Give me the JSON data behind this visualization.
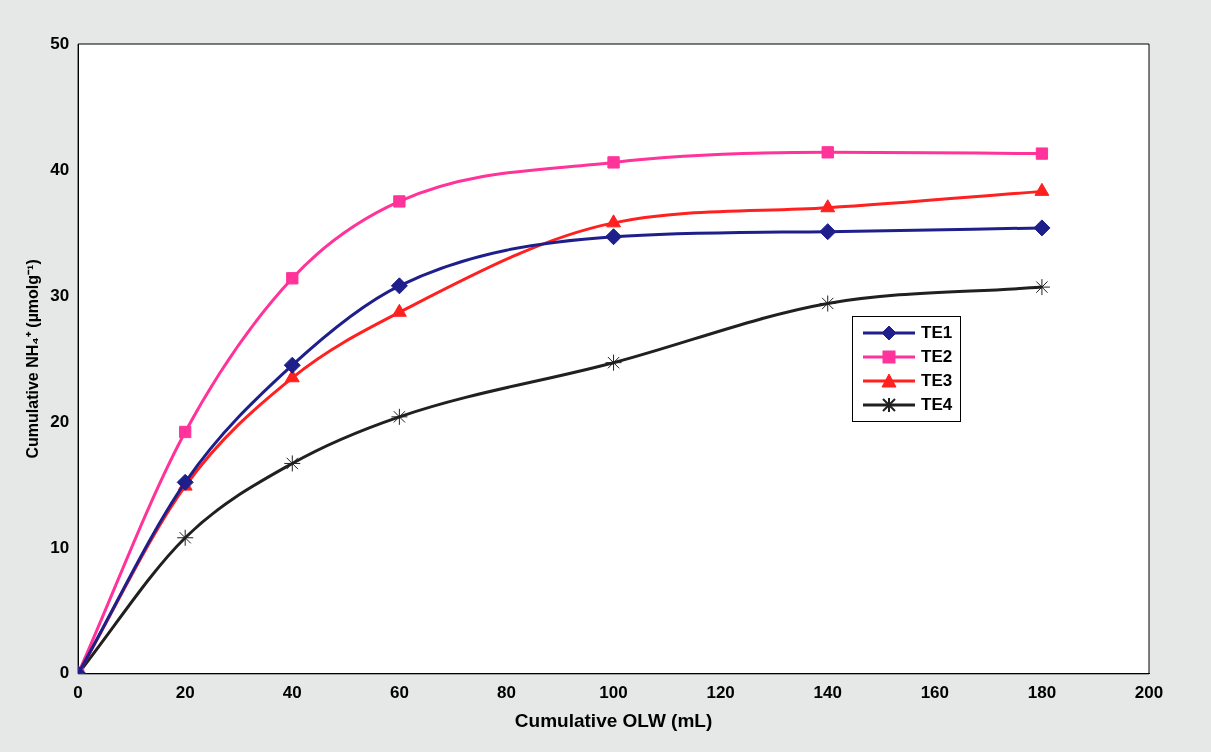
{
  "chart_data": {
    "type": "line",
    "xlabel": "Cumulative OLW (mL)",
    "ylabel": "Cumulative NH₄⁺ (µmolg⁻¹)",
    "x": [
      0,
      20,
      40,
      60,
      100,
      140,
      180
    ],
    "series": [
      {
        "name": "TE1",
        "color": "#1f1f8c",
        "marker": "diamond",
        "values": [
          0,
          15.2,
          24.5,
          30.8,
          34.7,
          35.1,
          35.4
        ]
      },
      {
        "name": "TE2",
        "color": "#ff3399",
        "marker": "square",
        "values": [
          0,
          19.2,
          31.4,
          37.5,
          40.6,
          41.4,
          41.3
        ]
      },
      {
        "name": "TE3",
        "color": "#ff2020",
        "marker": "triangle",
        "values": [
          0,
          14.9,
          23.5,
          28.7,
          35.8,
          37.0,
          38.3
        ]
      },
      {
        "name": "TE4",
        "color": "#202020",
        "marker": "cross",
        "values": [
          0,
          10.8,
          16.7,
          20.4,
          24.7,
          29.4,
          30.7
        ]
      }
    ],
    "xlim": [
      0,
      200
    ],
    "xticks": [
      0,
      20,
      40,
      60,
      80,
      100,
      120,
      140,
      160,
      180,
      200
    ],
    "ylim": [
      0,
      50
    ],
    "yticks": [
      0,
      10,
      20,
      30,
      40,
      50
    ],
    "grid": false,
    "legend": "right",
    "line_style": "solid"
  }
}
